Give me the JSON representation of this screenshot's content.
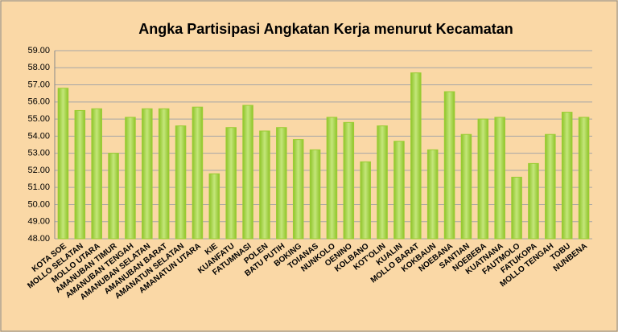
{
  "chart_data": {
    "type": "bar",
    "title": "Angka Partisipasi  Angkatan Kerja menurut Kecamatan",
    "categories": [
      "KOTA SOE",
      "MOLLO SELATAN",
      "MOLLO UTARA",
      "AMANUBAN TIMUR",
      "AMANUBAN TENGAH",
      "AMANUBAN SELATAN",
      "AMANUBAN BARAT",
      "AMANATUN SELATAN",
      "AMANATUN UTARA",
      "KIE",
      "KUANFATU",
      "FATUMNASI",
      "POLEN",
      "BATU PUTIH",
      "BOKING",
      "TOIANAS",
      "NUNKOLO",
      "OENINO",
      "KOLBANO",
      "KOT'OLIN",
      "KUALIN",
      "MOLLO BARAT",
      "KOKBAUN",
      "NOEBANA",
      "SANTIAN",
      "NOEBEBA",
      "KUATNANA",
      "FAUTMOLO",
      "FATUKOPA",
      "MOLLO TENGAH",
      "TOBU",
      "NUNBENA"
    ],
    "values": [
      56.8,
      55.5,
      55.6,
      53.0,
      55.1,
      55.6,
      55.6,
      54.6,
      55.7,
      51.8,
      54.5,
      55.8,
      54.3,
      54.5,
      53.8,
      53.2,
      55.1,
      54.8,
      52.5,
      54.6,
      53.7,
      57.7,
      53.2,
      56.6,
      54.1,
      55.0,
      55.1,
      51.6,
      52.4,
      54.1,
      55.4,
      55.1
    ],
    "color": "#9acd32",
    "ylim": [
      48,
      59
    ],
    "yticks": [
      {
        "value": 48,
        "label": "48.00"
      },
      {
        "value": 49,
        "label": "49.00"
      },
      {
        "value": 50,
        "label": "50.00"
      },
      {
        "value": 51,
        "label": "51.00"
      },
      {
        "value": 52,
        "label": "52.00"
      },
      {
        "value": 53,
        "label": "53.00"
      },
      {
        "value": 54,
        "label": "54.00"
      },
      {
        "value": 55,
        "label": "55.00"
      },
      {
        "value": 56,
        "label": "56.00"
      },
      {
        "value": 57,
        "label": "57.00"
      },
      {
        "value": 58,
        "label": "58.00"
      },
      {
        "value": 59,
        "label": "59.00"
      }
    ],
    "grid": true
  }
}
